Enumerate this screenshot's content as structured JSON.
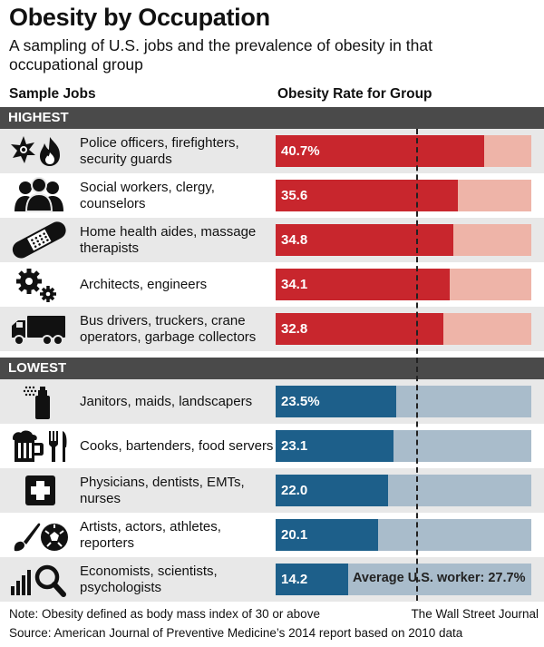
{
  "header": {
    "title": "Obesity by Occupation",
    "subtitle": "A sampling of U.S. jobs and the prevalence of obesity in that occupational group",
    "col_jobs": "Sample Jobs",
    "col_rate": "Obesity Rate for Group"
  },
  "colors": {
    "highest_fill": "#c8262d",
    "highest_track": "#eeb4a8",
    "lowest_fill": "#1d5f8a",
    "lowest_track": "#a9bccb",
    "section_bar": "#4a4a4a",
    "row_shade": "#e8e8e8"
  },
  "chart_data": {
    "type": "bar",
    "title": "Obesity by Occupation",
    "xlim": [
      0,
      50
    ],
    "reference": {
      "label": "Average U.S. worker: 27.7%",
      "value": 27.7
    },
    "groups": [
      {
        "name": "HIGHEST",
        "rows": [
          {
            "job": "Police officers, firefighters, security guards",
            "value": 40.7,
            "label": "40.7%",
            "icon": "police-fire-icon"
          },
          {
            "job": "Social workers, clergy, counselors",
            "value": 35.6,
            "label": "35.6",
            "icon": "people-icon"
          },
          {
            "job": "Home health aides, massage therapists",
            "value": 34.8,
            "label": "34.8",
            "icon": "bandage-icon"
          },
          {
            "job": "Architects, engineers",
            "value": 34.1,
            "label": "34.1",
            "icon": "gears-icon"
          },
          {
            "job": "Bus drivers, truckers, crane operators, garbage collectors",
            "value": 32.8,
            "label": "32.8",
            "icon": "truck-icon"
          }
        ]
      },
      {
        "name": "LOWEST",
        "rows": [
          {
            "job": "Janitors, maids, landscapers",
            "value": 23.5,
            "label": "23.5%",
            "icon": "spray-bottle-icon"
          },
          {
            "job": "Cooks, bartenders, food servers",
            "value": 23.1,
            "label": "23.1",
            "icon": "beer-fork-knife-icon"
          },
          {
            "job": "Physicians, dentists, EMTs, nurses",
            "value": 22.0,
            "label": "22.0",
            "icon": "medical-cross-icon"
          },
          {
            "job": "Artists, actors, athletes, reporters",
            "value": 20.1,
            "label": "20.1",
            "icon": "brush-ball-icon"
          },
          {
            "job": "Economists, scientists, psychologists",
            "value": 14.2,
            "label": "14.2",
            "icon": "chart-magnifier-icon"
          }
        ]
      }
    ]
  },
  "footer": {
    "note": "Note: Obesity defined as body mass index of 30 or above",
    "credit": "The Wall Street Journal",
    "source": "Source: American Journal of Preventive Medicine’s 2014 report based on 2010 data"
  }
}
